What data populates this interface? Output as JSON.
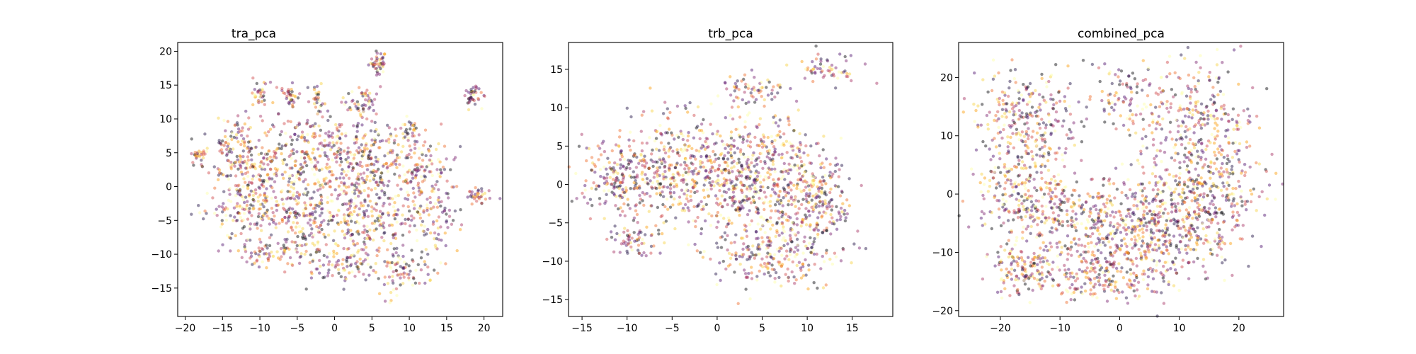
{
  "chart_data": [
    {
      "type": "scatter",
      "title": "tra_pca",
      "xlabel": "",
      "ylabel": "",
      "xlim": [
        -21,
        22.5
      ],
      "ylim": [
        -19.2,
        21.3
      ],
      "xticks": [
        -20,
        -15,
        -10,
        -5,
        0,
        5,
        10,
        15,
        20
      ],
      "yticks": [
        -15,
        -10,
        -5,
        0,
        5,
        10,
        15,
        20
      ],
      "grid": false,
      "legend": "none",
      "colormap": "inferno",
      "point_alpha": 0.45,
      "clusters": [
        {
          "x": 5.8,
          "y": 18.4,
          "sx": 0.6,
          "sy": 0.8,
          "n": 45
        },
        {
          "x": 18.5,
          "y": 13.3,
          "sx": 0.6,
          "sy": 0.8,
          "n": 40
        },
        {
          "x": -10.0,
          "y": 13.5,
          "sx": 0.6,
          "sy": 1.0,
          "n": 35
        },
        {
          "x": -6.0,
          "y": 13.5,
          "sx": 0.5,
          "sy": 1.0,
          "n": 35
        },
        {
          "x": -2.3,
          "y": 13.0,
          "sx": 0.5,
          "sy": 0.8,
          "n": 25
        },
        {
          "x": 3.5,
          "y": 12.5,
          "sx": 1.2,
          "sy": 1.4,
          "n": 60
        },
        {
          "x": -18.5,
          "y": 4.5,
          "sx": 0.5,
          "sy": 0.8,
          "n": 25
        },
        {
          "x": 19.2,
          "y": -1.5,
          "sx": 0.9,
          "sy": 0.7,
          "n": 35
        },
        {
          "x": 9.8,
          "y": 8.5,
          "sx": 0.6,
          "sy": 0.9,
          "n": 25
        },
        {
          "x": -14.0,
          "y": 4.5,
          "sx": 1.8,
          "sy": 2.5,
          "n": 120
        },
        {
          "x": -9.5,
          "y": 3.5,
          "sx": 1.8,
          "sy": 3.0,
          "n": 130
        },
        {
          "x": -4.5,
          "y": 4.0,
          "sx": 1.8,
          "sy": 3.5,
          "n": 140
        },
        {
          "x": 0.5,
          "y": 3.5,
          "sx": 2.0,
          "sy": 3.5,
          "n": 150
        },
        {
          "x": 5.0,
          "y": 4.0,
          "sx": 2.0,
          "sy": 3.0,
          "n": 140
        },
        {
          "x": 11.0,
          "y": 3.5,
          "sx": 2.0,
          "sy": 2.5,
          "n": 100
        },
        {
          "x": -12.0,
          "y": -3.5,
          "sx": 3.0,
          "sy": 2.0,
          "n": 150
        },
        {
          "x": -4.0,
          "y": -5.0,
          "sx": 3.0,
          "sy": 3.0,
          "n": 200
        },
        {
          "x": 4.5,
          "y": -4.5,
          "sx": 3.0,
          "sy": 3.5,
          "n": 220
        },
        {
          "x": 12.5,
          "y": -4.0,
          "sx": 2.2,
          "sy": 3.5,
          "n": 130
        },
        {
          "x": 9.0,
          "y": -12.5,
          "sx": 1.8,
          "sy": 1.8,
          "n": 80
        },
        {
          "x": -9.0,
          "y": -10.0,
          "sx": 2.0,
          "sy": 1.0,
          "n": 60
        },
        {
          "x": 1.0,
          "y": -11.5,
          "sx": 2.5,
          "sy": 1.2,
          "n": 70
        }
      ]
    },
    {
      "type": "scatter",
      "title": "trb_pca",
      "xlabel": "",
      "ylabel": "",
      "xlim": [
        -16.5,
        19.5
      ],
      "ylim": [
        -17.2,
        18.5
      ],
      "xticks": [
        -15,
        -10,
        -5,
        0,
        5,
        10,
        15
      ],
      "yticks": [
        -15,
        -10,
        -5,
        0,
        5,
        10,
        15
      ],
      "grid": false,
      "legend": "none",
      "colormap": "inferno",
      "point_alpha": 0.45,
      "clusters": [
        {
          "x": 12.0,
          "y": 15.0,
          "sx": 1.8,
          "sy": 0.8,
          "n": 60
        },
        {
          "x": 4.0,
          "y": 12.5,
          "sx": 2.0,
          "sy": 1.0,
          "n": 60
        },
        {
          "x": -11.0,
          "y": 1.0,
          "sx": 2.0,
          "sy": 2.5,
          "n": 170
        },
        {
          "x": -5.5,
          "y": 2.0,
          "sx": 2.5,
          "sy": 3.5,
          "n": 270
        },
        {
          "x": 0.5,
          "y": 1.5,
          "sx": 3.0,
          "sy": 4.0,
          "n": 360
        },
        {
          "x": 6.5,
          "y": 0.0,
          "sx": 3.0,
          "sy": 4.5,
          "n": 360
        },
        {
          "x": 11.0,
          "y": -3.0,
          "sx": 2.0,
          "sy": 4.0,
          "n": 220
        },
        {
          "x": -9.0,
          "y": -7.0,
          "sx": 1.5,
          "sy": 1.2,
          "n": 60
        },
        {
          "x": 5.5,
          "y": -9.5,
          "sx": 3.0,
          "sy": 2.0,
          "n": 160
        }
      ]
    },
    {
      "type": "scatter",
      "title": "combined_pca",
      "xlabel": "",
      "ylabel": "",
      "xlim": [
        -27,
        27.5
      ],
      "ylim": [
        -21,
        26
      ],
      "xticks": [
        -20,
        -10,
        0,
        10,
        20
      ],
      "yticks": [
        -20,
        -10,
        0,
        10,
        20
      ],
      "grid": false,
      "legend": "none",
      "colormap": "inferno",
      "point_alpha": 0.45,
      "clusters": [
        {
          "x": -16.0,
          "y": 12.0,
          "sx": 4.0,
          "sy": 5.0,
          "n": 280
        },
        {
          "x": 13.0,
          "y": 12.0,
          "sx": 5.0,
          "sy": 5.5,
          "n": 300
        },
        {
          "x": -15.0,
          "y": 0.0,
          "sx": 4.5,
          "sy": 4.0,
          "n": 260
        },
        {
          "x": 15.0,
          "y": 0.0,
          "sx": 4.5,
          "sy": 5.0,
          "n": 280
        },
        {
          "x": -2.0,
          "y": -6.0,
          "sx": 7.0,
          "sy": 4.5,
          "n": 420
        },
        {
          "x": 8.0,
          "y": -6.0,
          "sx": 5.0,
          "sy": 4.5,
          "n": 280
        },
        {
          "x": -16.5,
          "y": -12.5,
          "sx": 3.0,
          "sy": 2.5,
          "n": 130
        },
        {
          "x": -3.0,
          "y": -14.5,
          "sx": 6.0,
          "sy": 2.5,
          "n": 180
        },
        {
          "x": 0.0,
          "y": 17.0,
          "sx": 4.0,
          "sy": 3.0,
          "n": 90
        }
      ]
    }
  ]
}
